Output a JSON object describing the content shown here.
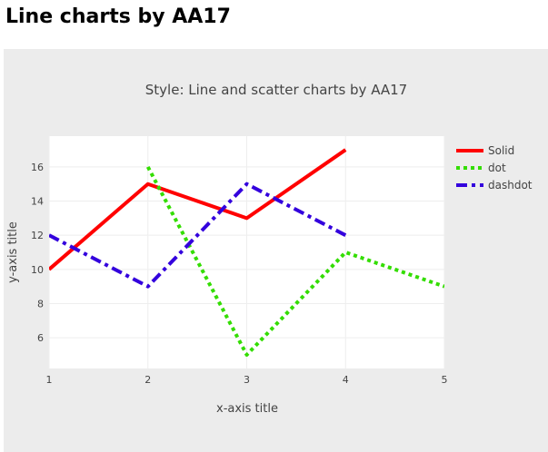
{
  "page": {
    "heading": "Line charts by AA17"
  },
  "chart_data": {
    "type": "line",
    "title": "Style: Line and scatter charts by AA17",
    "xlabel": "x-axis title",
    "ylabel": "y-axis title",
    "xlim": [
      1,
      5
    ],
    "ylim": [
      4.2,
      17.8
    ],
    "x_ticks": [
      1,
      2,
      3,
      4,
      5
    ],
    "y_ticks": [
      6,
      8,
      10,
      12,
      14,
      16
    ],
    "grid": true,
    "legend_position": "top-right",
    "series": [
      {
        "name": "Solid",
        "x": [
          1,
          2,
          3,
          4
        ],
        "y": [
          10,
          15,
          13,
          17
        ],
        "color": "#ff0000",
        "dash": "solid"
      },
      {
        "name": "dot",
        "x": [
          2,
          3,
          4,
          5
        ],
        "y": [
          16,
          5,
          11,
          9
        ],
        "color": "#33dd00",
        "dash": "dot"
      },
      {
        "name": "dashdot",
        "x": [
          1,
          2,
          3,
          4
        ],
        "y": [
          12,
          9,
          15,
          12
        ],
        "color": "#3300dd",
        "dash": "dashdot"
      }
    ]
  }
}
